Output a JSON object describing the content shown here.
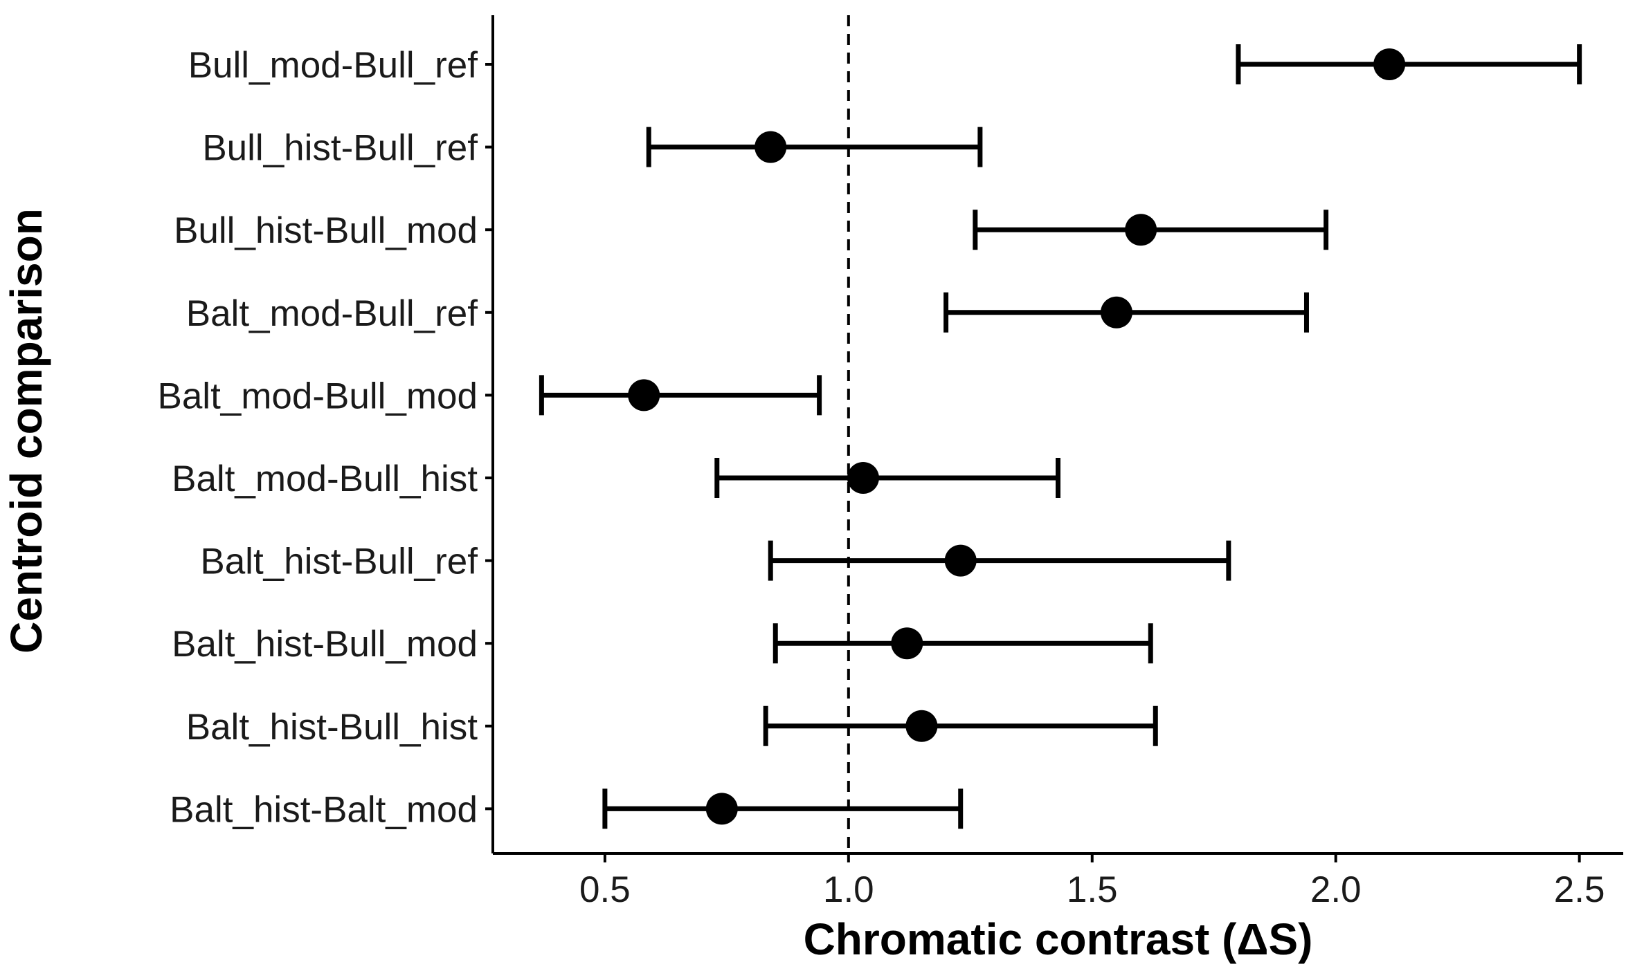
{
  "chart_data": {
    "type": "scatter",
    "subtype": "point-with-error-bars",
    "title": "",
    "xlabel": "Chromatic contrast (ΔS)",
    "ylabel": "Centroid comparison",
    "xlim": [
      0.27,
      2.59
    ],
    "xticks": [
      0.5,
      1.0,
      1.5,
      2.0,
      2.5
    ],
    "xtick_labels": [
      "0.5",
      "1.0",
      "1.5",
      "2.0",
      "2.5"
    ],
    "reference_line": {
      "x": 1.0,
      "style": "dashed"
    },
    "grid": false,
    "legend": "none",
    "colors": {
      "points": "#000000",
      "axis": "#000000",
      "text": "#1a1a1a"
    },
    "categories": [
      "Bull_mod-Bull_ref",
      "Bull_hist-Bull_ref",
      "Bull_hist-Bull_mod",
      "Balt_mod-Bull_ref",
      "Balt_mod-Bull_mod",
      "Balt_mod-Bull_hist",
      "Balt_hist-Bull_ref",
      "Balt_hist-Bull_mod",
      "Balt_hist-Bull_hist",
      "Balt_hist-Balt_mod"
    ],
    "values": [
      2.11,
      0.84,
      1.6,
      1.55,
      0.58,
      1.03,
      1.23,
      1.12,
      1.15,
      0.74
    ],
    "lower": [
      1.8,
      0.59,
      1.26,
      1.2,
      0.37,
      0.73,
      0.84,
      0.85,
      0.83,
      0.5
    ],
    "upper": [
      2.5,
      1.27,
      1.98,
      1.94,
      0.94,
      1.43,
      1.78,
      1.62,
      1.63,
      1.23
    ]
  }
}
